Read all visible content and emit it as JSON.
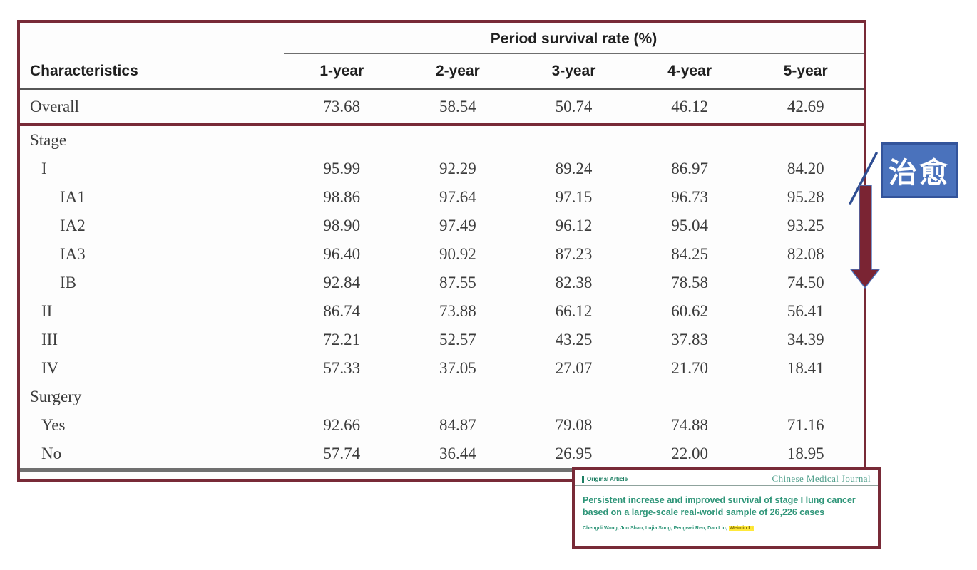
{
  "colors": {
    "box_border_maroon": "#782a37",
    "arrow_maroon": "#7a2433",
    "arrow_outline_blue": "#4a72bc",
    "slash_blue": "#2e4d92",
    "badge_fill_blue": "#4a72bc",
    "badge_border_blue": "#33549b",
    "badge_text": "#ffffff",
    "citation_green": "#2e9578",
    "journal_logo_green": "#4f9f8b",
    "author_highlight_yellow": "#ffe93a",
    "rule_gray": "#6e6e6e"
  },
  "table": {
    "span_header": "Period survival rate (%)",
    "col_header": "Characteristics",
    "year_headers": [
      "1-year",
      "2-year",
      "3-year",
      "4-year",
      "5-year"
    ],
    "rows": [
      {
        "label": "Overall",
        "indent": 0,
        "divider": true,
        "values": [
          "73.68",
          "58.54",
          "50.74",
          "46.12",
          "42.69"
        ]
      },
      {
        "label": "Stage",
        "indent": 0,
        "values": [
          "",
          "",
          "",
          "",
          ""
        ]
      },
      {
        "label": "I",
        "indent": 1,
        "values": [
          "95.99",
          "92.29",
          "89.24",
          "86.97",
          "84.20"
        ]
      },
      {
        "label": "IA1",
        "indent": 2,
        "values": [
          "98.86",
          "97.64",
          "97.15",
          "96.73",
          "95.28"
        ]
      },
      {
        "label": "IA2",
        "indent": 2,
        "values": [
          "98.90",
          "97.49",
          "96.12",
          "95.04",
          "93.25"
        ]
      },
      {
        "label": "IA3",
        "indent": 2,
        "values": [
          "96.40",
          "90.92",
          "87.23",
          "84.25",
          "82.08"
        ]
      },
      {
        "label": "IB",
        "indent": 2,
        "values": [
          "92.84",
          "87.55",
          "82.38",
          "78.58",
          "74.50"
        ]
      },
      {
        "label": "II",
        "indent": 1,
        "values": [
          "86.74",
          "73.88",
          "66.12",
          "60.62",
          "56.41"
        ]
      },
      {
        "label": "III",
        "indent": 1,
        "values": [
          "72.21",
          "52.57",
          "43.25",
          "37.83",
          "34.39"
        ]
      },
      {
        "label": "IV",
        "indent": 1,
        "values": [
          "57.33",
          "37.05",
          "27.07",
          "21.70",
          "18.41"
        ]
      },
      {
        "label": "Surgery",
        "indent": 0,
        "values": [
          "",
          "",
          "",
          "",
          ""
        ]
      },
      {
        "label": "Yes",
        "indent": 1,
        "values": [
          "92.66",
          "84.87",
          "79.08",
          "74.88",
          "71.16"
        ]
      },
      {
        "label": "No",
        "indent": 1,
        "values": [
          "57.74",
          "36.44",
          "26.95",
          "22.00",
          "18.95"
        ]
      }
    ]
  },
  "annotation": {
    "badge_label": "治愈"
  },
  "citation": {
    "kicker": "Original Article",
    "journal": "Chinese Medical Journal",
    "title": "Persistent increase and improved survival of stage I lung cancer based on a large-scale real-world sample of 26,226 cases",
    "authors": "Chengdi Wang, Jun Shao, Lujia Song, Pengwei Ren, Dan Liu,",
    "highlighted_author": "Weimin Li"
  }
}
